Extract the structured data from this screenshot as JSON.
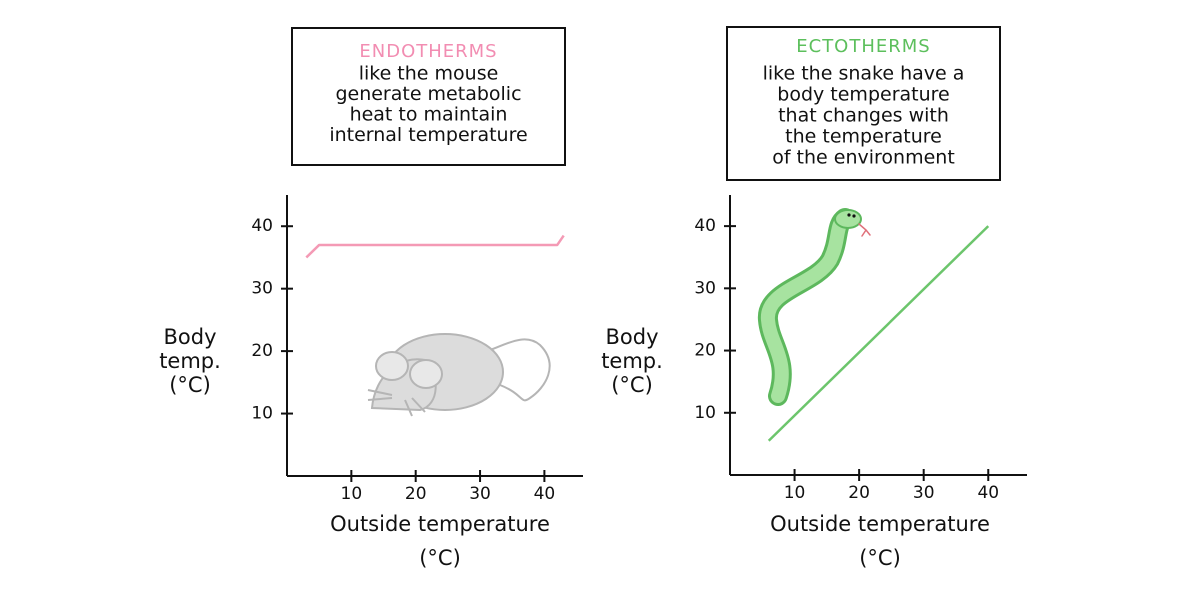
{
  "chart_data": [
    {
      "type": "line",
      "title": "ENDOTHERMS",
      "title_color": "#f28db2",
      "description": [
        "like the mouse",
        "generate metabolic",
        "heat to maintain",
        "internal temperature"
      ],
      "x_label": [
        "Outside temperature",
        "(°C)"
      ],
      "y_label": [
        "Body",
        "temp.",
        "(°C)"
      ],
      "xlim": [
        0,
        46
      ],
      "ylim": [
        0,
        45
      ],
      "xticks": [
        10,
        20,
        30,
        40
      ],
      "yticks": [
        10,
        20,
        30,
        40
      ],
      "series": [
        {
          "color": "#f49ab5",
          "x": [
            3,
            5,
            42,
            43
          ],
          "values": [
            35,
            37,
            37,
            38.5
          ]
        }
      ]
    },
    {
      "type": "line",
      "title": "ECTOTHERMS",
      "title_color": "#5cbf5c",
      "description": [
        "like the snake have a",
        "body temperature",
        "that changes with",
        "the temperature",
        "of the environment"
      ],
      "x_label": [
        "Outside temperature",
        "(°C)"
      ],
      "y_label": [
        "Body",
        "temp.",
        "(°C)"
      ],
      "xlim": [
        0,
        46
      ],
      "ylim": [
        0,
        45
      ],
      "xticks": [
        10,
        20,
        30,
        40
      ],
      "yticks": [
        10,
        20,
        30,
        40
      ],
      "series": [
        {
          "color": "#6cc56c",
          "x": [
            6,
            40
          ],
          "values": [
            5.5,
            40
          ]
        }
      ]
    }
  ]
}
